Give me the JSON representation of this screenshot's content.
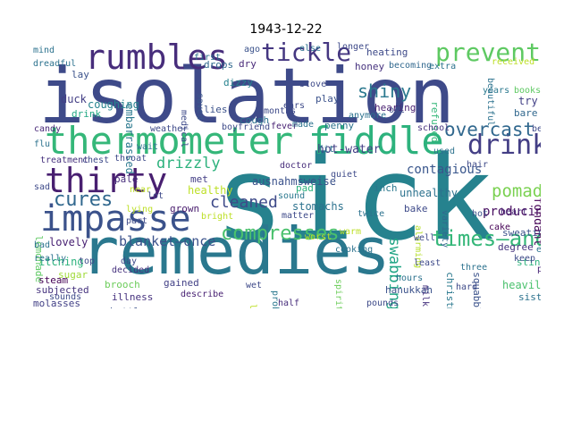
{
  "title": "1943-12-22",
  "words": [
    {
      "text": "sick",
      "color": "#26828e"
    },
    {
      "text": "isolation",
      "color": "#3e4a89"
    },
    {
      "text": "remedies",
      "color": "#2a788e"
    },
    {
      "text": "thermometer",
      "color": "#35b779"
    },
    {
      "text": "fiddle",
      "color": "#2db27d"
    },
    {
      "text": "impasse",
      "color": "#3b528b"
    },
    {
      "text": "thirty",
      "color": "#481f70"
    },
    {
      "text": "rumbles",
      "color": "#472d7b"
    },
    {
      "text": "tickle",
      "color": "#453781"
    },
    {
      "text": "prevented",
      "color": "#5ec962"
    },
    {
      "text": "drinks",
      "color": "#433e85"
    },
    {
      "text": "cures",
      "color": "#31688e"
    },
    {
      "text": "compresses",
      "color": "#4ac16d"
    },
    {
      "text": "times—and",
      "color": "#35b779"
    },
    {
      "text": "overcast",
      "color": "#31688e"
    },
    {
      "text": "shiny",
      "color": "#2a788e"
    },
    {
      "text": "cleaned",
      "color": "#3e4a89"
    },
    {
      "text": "drizzly",
      "color": "#2db27d"
    },
    {
      "text": "pomaded",
      "color": "#7ad151"
    },
    {
      "text": "swabbing",
      "color": "#21a585"
    },
    {
      "text": "blanket—once",
      "color": "#3b528b"
    },
    {
      "text": "contagious",
      "color": "#39568c"
    },
    {
      "text": "hot-water",
      "color": "#433e85"
    },
    {
      "text": "ausnahmsweise",
      "color": "#3b528b"
    },
    {
      "text": "stomachs",
      "color": "#2c728e"
    },
    {
      "text": "fondant",
      "color": "#440154"
    },
    {
      "text": "producing",
      "color": "#470d60"
    },
    {
      "text": "unhealthy",
      "color": "#2c728e"
    },
    {
      "text": "healthy",
      "color": "#bddf26"
    },
    {
      "text": "grown",
      "color": "#481b6d"
    },
    {
      "text": "lovely",
      "color": "#482173"
    },
    {
      "text": "itching",
      "color": "#2db27d"
    },
    {
      "text": "sugar",
      "color": "#a0da39"
    },
    {
      "text": "subjected",
      "color": "#46337e"
    },
    {
      "text": "molasses",
      "color": "#424086"
    },
    {
      "text": "brooch",
      "color": "#6ccd5a"
    },
    {
      "text": "illness",
      "color": "#46327e"
    },
    {
      "text": "gained",
      "color": "#424086"
    },
    {
      "text": "bottles",
      "color": "#3b528b"
    },
    {
      "text": "heavily",
      "color": "#4ac16d"
    },
    {
      "text": "squabbles",
      "color": "#3b528b"
    },
    {
      "text": "christmas",
      "color": "#2a788e"
    },
    {
      "text": "hanukkah",
      "color": "#3b528b"
    },
    {
      "text": "coughing",
      "color": "#26828e"
    },
    {
      "text": "embarrassed",
      "color": "#2a788e"
    },
    {
      "text": "treatment",
      "color": "#46327e"
    },
    {
      "text": "lemonade",
      "color": "#5ec962"
    },
    {
      "text": "duck",
      "color": "#433e85"
    },
    {
      "text": "drink",
      "color": "#22a884"
    },
    {
      "text": "lay",
      "color": "#3b528b"
    },
    {
      "text": "drops",
      "color": "#31688e"
    },
    {
      "text": "dizzy",
      "color": "#26828e"
    },
    {
      "text": "dry",
      "color": "#482878"
    },
    {
      "text": "lies",
      "color": "#3b528b"
    },
    {
      "text": "saved",
      "color": "#39568c"
    },
    {
      "text": "cough",
      "color": "#2c728e"
    },
    {
      "text": "heating",
      "color": "#3e4a89"
    },
    {
      "text": "honey",
      "color": "#46327e"
    },
    {
      "text": "refused",
      "color": "#35b779"
    },
    {
      "text": "try",
      "color": "#424086"
    },
    {
      "text": "bare",
      "color": "#31688e"
    },
    {
      "text": "sweating",
      "color": "#3b528b"
    },
    {
      "text": "degree",
      "color": "#46327e"
    },
    {
      "text": "stinks",
      "color": "#2db27d"
    },
    {
      "text": "present",
      "color": "#21a585"
    },
    {
      "text": "peace",
      "color": "#482878"
    },
    {
      "text": "sister",
      "color": "#2c728e"
    },
    {
      "text": "hearing",
      "color": "#481f70"
    },
    {
      "text": "play",
      "color": "#3b528b"
    },
    {
      "text": "penny",
      "color": "#2c728e"
    },
    {
      "text": "fever",
      "color": "#482173"
    },
    {
      "text": "steam",
      "color": "#440154"
    },
    {
      "text": "pale",
      "color": "#472d7b"
    },
    {
      "text": "pad",
      "color": "#2db27d"
    },
    {
      "text": "inch",
      "color": "#2a788e"
    },
    {
      "text": "bake",
      "color": "#3e4a89"
    },
    {
      "text": "cake",
      "color": "#440154"
    },
    {
      "text": "met",
      "color": "#433e85"
    },
    {
      "text": "variety",
      "color": "#31688e"
    },
    {
      "text": "alarming",
      "color": "#b5de2b"
    },
    {
      "text": "milk",
      "color": "#46327e"
    },
    {
      "text": "cooking",
      "color": "#2c728e"
    },
    {
      "text": "twice",
      "color": "#2c728e"
    },
    {
      "text": "boyfriend",
      "color": "#3e4a89"
    },
    {
      "text": "candy",
      "color": "#482878"
    },
    {
      "text": "flu",
      "color": "#2c728e"
    },
    {
      "text": "doctor",
      "color": "#472d7b"
    },
    {
      "text": "matter",
      "color": "#3e4a89"
    },
    {
      "text": "describe",
      "color": "#482173"
    },
    {
      "text": "stove",
      "color": "#3e4a89"
    },
    {
      "text": "school",
      "color": "#46327e"
    },
    {
      "text": "heart",
      "color": "#482878"
    },
    {
      "text": "hot",
      "color": "#3b528b"
    },
    {
      "text": "hair",
      "color": "#3e4a89"
    },
    {
      "text": "years",
      "color": "#2a788e"
    },
    {
      "text": "books",
      "color": "#5ec962"
    },
    {
      "text": "sound",
      "color": "#2a788e"
    },
    {
      "text": "half",
      "color": "#472d7b"
    },
    {
      "text": "made",
      "color": "#2c728e"
    },
    {
      "text": "ears",
      "color": "#3e4a89"
    },
    {
      "text": "first",
      "color": "#2c728e"
    },
    {
      "text": "becoming",
      "color": "#31688e"
    },
    {
      "text": "longer",
      "color": "#3e4a89"
    },
    {
      "text": "enough",
      "color": "#2c728e"
    },
    {
      "text": "extra",
      "color": "#2c728e"
    },
    {
      "text": "pounds",
      "color": "#3e4a89"
    },
    {
      "text": "worst",
      "color": "#bddf26"
    },
    {
      "text": "probably",
      "color": "#2a788e"
    },
    {
      "text": "thinking",
      "color": "#433e85"
    },
    {
      "text": "dreadful",
      "color": "#2c728e"
    },
    {
      "text": "spirits",
      "color": "#6ccd5a"
    },
    {
      "text": "hard",
      "color": "#3e4a89"
    },
    {
      "text": "fit",
      "color": "#2c728e"
    },
    {
      "text": "quiet",
      "color": "#3e4a89"
    },
    {
      "text": "ago",
      "color": "#3b528b"
    },
    {
      "text": "top",
      "color": "#3e4a89"
    },
    {
      "text": "decided",
      "color": "#46327e"
    },
    {
      "text": "sounds",
      "color": "#3e4a89"
    },
    {
      "text": "lying",
      "color": "#bddf26"
    },
    {
      "text": "part",
      "color": "#3e4a89"
    },
    {
      "text": "hours",
      "color": "#2c728e"
    },
    {
      "text": "anymore",
      "color": "#2c728e"
    },
    {
      "text": "received",
      "color": "#bddf26"
    },
    {
      "text": "beautiful",
      "color": "#2c728e"
    },
    {
      "text": "almost",
      "color": "#3e4a89"
    },
    {
      "text": "oil",
      "color": "#3e4a89"
    },
    {
      "text": "months",
      "color": "#3e4a89"
    },
    {
      "text": "weather",
      "color": "#3e4a89"
    },
    {
      "text": "throat",
      "color": "#3e4a89"
    },
    {
      "text": "really",
      "color": "#2c728e"
    },
    {
      "text": "listen",
      "color": "#bddf26"
    },
    {
      "text": "bed",
      "color": "#3e4a89"
    },
    {
      "text": "bad",
      "color": "#2c728e"
    },
    {
      "text": "every",
      "color": "#2c728e"
    },
    {
      "text": "used",
      "color": "#2c728e"
    },
    {
      "text": "least",
      "color": "#3e4a89"
    },
    {
      "text": "three",
      "color": "#2c728e"
    },
    {
      "text": "keep",
      "color": "#3e4a89"
    },
    {
      "text": "well",
      "color": "#3e4a89"
    },
    {
      "text": "bright",
      "color": "#bddf26"
    },
    {
      "text": "mind",
      "color": "#2c728e"
    },
    {
      "text": "medical",
      "color": "#3e4a89"
    },
    {
      "text": "chest",
      "color": "#3e4a89"
    },
    {
      "text": "sad",
      "color": "#3e4a89"
    },
    {
      "text": "day",
      "color": "#3e4a89"
    },
    {
      "text": "near",
      "color": "#bddf26"
    },
    {
      "text": "else",
      "color": "#2c728e"
    },
    {
      "text": "lot",
      "color": "#3e4a89"
    },
    {
      "text": "wait",
      "color": "#2c728e"
    },
    {
      "text": "warm",
      "color": "#bddf26"
    },
    {
      "text": "wet",
      "color": "#3e4a89"
    }
  ]
}
